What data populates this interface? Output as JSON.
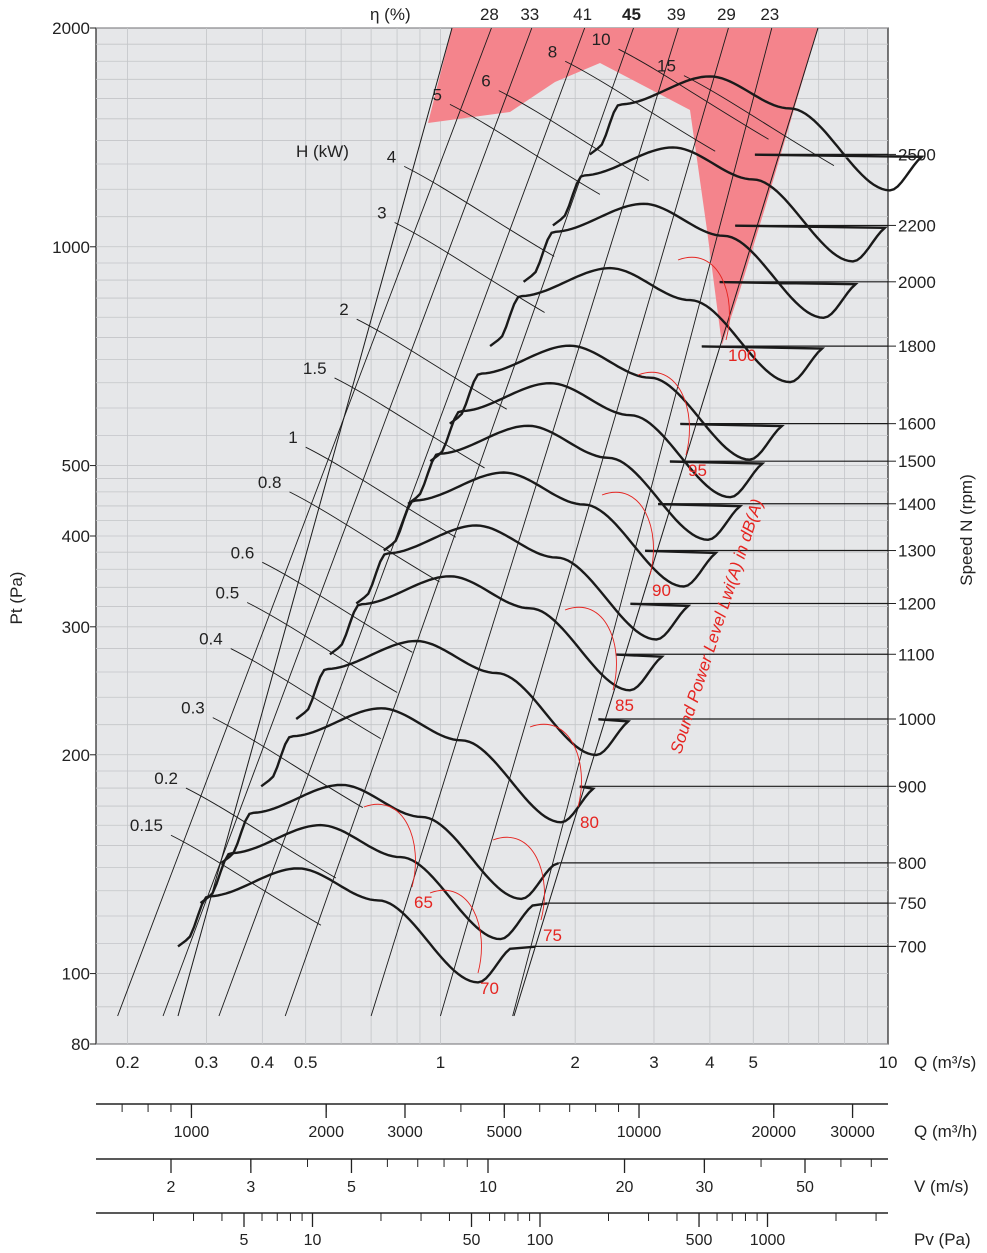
{
  "chart_data": {
    "type": "line",
    "title": "",
    "y_axis": {
      "label": "Pt (Pa)",
      "scale": "log",
      "range": [
        80,
        2000
      ],
      "ticks": [
        "2000",
        "1000",
        "500",
        "400",
        "300",
        "200",
        "100",
        "80"
      ],
      "tick_values": [
        2000,
        1000,
        500,
        400,
        300,
        200,
        100,
        80
      ]
    },
    "x_axis": {
      "label": "Q (m³/s)",
      "scale": "log",
      "range": [
        0.17,
        10
      ],
      "ticks": [
        "0.2",
        "0.3",
        "0.4",
        "0.5",
        "1",
        "2",
        "3",
        "4",
        "5",
        "10"
      ],
      "tick_values": [
        0.2,
        0.3,
        0.4,
        0.5,
        1,
        2,
        3,
        4,
        5,
        10
      ]
    },
    "secondary_scales": [
      {
        "label": "Q (m³/h)",
        "ticks": [
          "1000",
          "2000",
          "3000",
          "5000",
          "10000",
          "20000",
          "30000"
        ],
        "tick_values": [
          1000,
          2000,
          3000,
          5000,
          10000,
          20000,
          30000
        ]
      },
      {
        "label": "V (m/s)",
        "ticks": [
          "2",
          "3",
          "5",
          "10",
          "20",
          "30",
          "50"
        ],
        "tick_values": [
          2,
          3,
          5,
          10,
          20,
          30,
          50
        ]
      },
      {
        "label": "Pv (Pa)",
        "ticks": [
          "5",
          "10",
          "50",
          "100",
          "500",
          "1000"
        ],
        "tick_values": [
          5,
          10,
          50,
          100,
          500,
          1000
        ]
      }
    ],
    "right_axis": {
      "label": "Speed N (rpm)",
      "speeds": [
        {
          "rpm": "2500",
          "pt": 1340
        },
        {
          "rpm": "2200",
          "pt": 1070
        },
        {
          "rpm": "2000",
          "pt": 895
        },
        {
          "rpm": "1800",
          "pt": 730
        },
        {
          "rpm": "1600",
          "pt": 571
        },
        {
          "rpm": "1500",
          "pt": 507
        },
        {
          "rpm": "1400",
          "pt": 443
        },
        {
          "rpm": "1300",
          "pt": 382
        },
        {
          "rpm": "1200",
          "pt": 323
        },
        {
          "rpm": "1100",
          "pt": 275
        },
        {
          "rpm": "1000",
          "pt": 224
        },
        {
          "rpm": "900",
          "pt": 181
        },
        {
          "rpm": "800",
          "pt": 142
        },
        {
          "rpm": "750",
          "pt": 125
        },
        {
          "rpm": "700",
          "pt": 109
        }
      ]
    },
    "efficiency_lines": {
      "label": "η (%)",
      "values": [
        "28",
        "33",
        "41",
        "45",
        "39",
        "29",
        "23"
      ],
      "q_at_top": [
        1.3,
        1.6,
        2.1,
        2.7,
        3.4,
        4.4,
        5.5
      ],
      "q_at_bottom": [
        0.19,
        0.24,
        0.32,
        0.45,
        0.7,
        1.0,
        1.45
      ]
    },
    "power_lines": {
      "label": "H (kW)",
      "values": [
        "5",
        "6",
        "8",
        "10",
        "15",
        "4",
        "3",
        "2",
        "1.5",
        "1",
        "0.8",
        "0.6",
        "0.5",
        "0.4",
        "0.3",
        "0.2",
        "0.15"
      ],
      "start_points": [
        {
          "q": 1.05,
          "pt": 1570
        },
        {
          "q": 1.35,
          "pt": 1640
        },
        {
          "q": 1.9,
          "pt": 1800
        },
        {
          "q": 2.5,
          "pt": 1870
        },
        {
          "q": 3.5,
          "pt": 1720
        },
        {
          "q": 0.83,
          "pt": 1290
        },
        {
          "q": 0.79,
          "pt": 1080
        },
        {
          "q": 0.65,
          "pt": 795
        },
        {
          "q": 0.58,
          "pt": 660
        },
        {
          "q": 0.5,
          "pt": 530
        },
        {
          "q": 0.46,
          "pt": 460
        },
        {
          "q": 0.4,
          "pt": 368
        },
        {
          "q": 0.37,
          "pt": 324
        },
        {
          "q": 0.34,
          "pt": 280
        },
        {
          "q": 0.31,
          "pt": 225
        },
        {
          "q": 0.27,
          "pt": 180
        },
        {
          "q": 0.25,
          "pt": 155
        }
      ]
    },
    "sound_power": {
      "label": "Sound Power Level Lwi(A) in dB(A)",
      "values": [
        "65",
        "70",
        "75",
        "80",
        "85",
        "90",
        "95",
        "100"
      ]
    },
    "colors": {
      "plot_background": "#e6e7e9",
      "danger_zone": "#f4848c",
      "sound_lines": "#e52420",
      "curves": "#1a1a1a"
    }
  }
}
